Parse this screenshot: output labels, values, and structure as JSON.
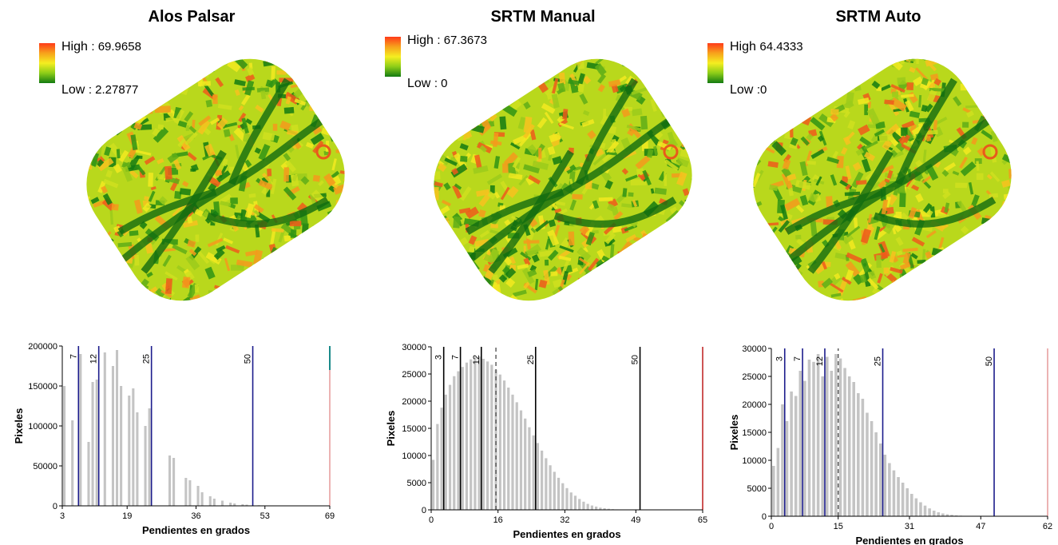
{
  "colors": {
    "high": "#ff3b1a",
    "mid": "#f5ee20",
    "low": "#137b12",
    "bar": "#c4c4c4"
  },
  "panels": [
    {
      "title": "Alos Palsar",
      "legend_high_label": "High",
      "legend_high_value": ": 69.9658",
      "legend_low_label": "Low",
      "legend_low_value": ": 2.27877"
    },
    {
      "title": "SRTM Manual",
      "legend_high_label": "High",
      "legend_high_value": ": 67.3673",
      "legend_low_label": "Low",
      "legend_low_value": ": 0"
    },
    {
      "title": "SRTM Auto",
      "legend_high_label": "High",
      "legend_high_value": "64.4333",
      "legend_low_label": "Low",
      "legend_low_value": ":0"
    }
  ],
  "chart_data": [
    {
      "type": "bar",
      "title": "",
      "xlabel": "Pendientes en grados",
      "ylabel": "Pixeles",
      "xlim": [
        3,
        69
      ],
      "ylim": [
        0,
        200000
      ],
      "xticks": [
        3,
        19,
        36,
        53,
        69
      ],
      "yticks": [
        0,
        50000,
        100000,
        150000,
        200000
      ],
      "x": [
        3,
        4,
        5,
        6,
        7,
        8,
        9,
        10,
        11,
        12,
        13,
        14,
        15,
        16,
        17,
        18,
        19,
        20,
        21,
        22,
        23,
        24,
        25,
        26,
        27,
        28,
        29,
        30,
        31,
        32,
        33,
        34,
        35,
        36,
        37,
        38,
        39,
        40,
        41,
        42,
        43,
        44,
        45,
        46,
        47,
        48,
        49,
        50,
        51,
        52,
        53,
        54,
        55,
        56,
        57,
        58,
        59,
        60,
        61,
        62,
        63,
        64,
        65,
        66,
        67,
        68
      ],
      "values": [
        150000,
        0,
        107000,
        0,
        190000,
        0,
        80000,
        155000,
        158000,
        0,
        192000,
        0,
        175000,
        195000,
        150000,
        0,
        138000,
        147000,
        117000,
        0,
        100000,
        122000,
        0,
        0,
        0,
        0,
        63000,
        60000,
        0,
        0,
        35000,
        32000,
        0,
        25000,
        17000,
        0,
        12000,
        9000,
        0,
        6500,
        0,
        4000,
        3000,
        0,
        2000,
        1500,
        0,
        0,
        800,
        500,
        0,
        300,
        0,
        0,
        0,
        0,
        0,
        0,
        0,
        0,
        0,
        0,
        0,
        0,
        0,
        0
      ],
      "reference_lines": [
        {
          "label": "7",
          "x": 7,
          "color": "#1c1c8c"
        },
        {
          "label": "12",
          "x": 12,
          "color": "#1c1c8c"
        },
        {
          "label": "25",
          "x": 25,
          "color": "#1c1c8c"
        },
        {
          "label": "50",
          "x": 50,
          "color": "#1c1c8c"
        }
      ],
      "end_line_color": "#e8a0a0",
      "end_top_color": "#1a8a8a"
    },
    {
      "type": "bar",
      "title": "",
      "xlabel": "Pendientes en grados",
      "ylabel": "Pixeles",
      "xlim": [
        0,
        65
      ],
      "ylim": [
        0,
        30000
      ],
      "xticks": [
        0,
        16,
        32,
        49,
        65
      ],
      "yticks": [
        0,
        5000,
        10000,
        15000,
        20000,
        25000,
        30000
      ],
      "x": [
        0,
        1,
        2,
        3,
        4,
        5,
        6,
        7,
        8,
        9,
        10,
        11,
        12,
        13,
        14,
        15,
        16,
        17,
        18,
        19,
        20,
        21,
        22,
        23,
        24,
        25,
        26,
        27,
        28,
        29,
        30,
        31,
        32,
        33,
        34,
        35,
        36,
        37,
        38,
        39,
        40,
        41,
        42,
        43,
        44,
        45,
        46,
        47,
        48,
        49
      ],
      "values": [
        9200,
        15800,
        18800,
        21200,
        23000,
        24600,
        25500,
        26300,
        27100,
        27700,
        28100,
        28200,
        27800,
        27300,
        26700,
        25800,
        24900,
        23800,
        22500,
        21200,
        19800,
        18300,
        16800,
        15200,
        13700,
        12300,
        10900,
        9500,
        8200,
        7000,
        5900,
        4900,
        4000,
        3200,
        2600,
        2000,
        1500,
        1100,
        800,
        600,
        400,
        300,
        200,
        120,
        80,
        50,
        30,
        20,
        10,
        5
      ],
      "reference_lines": [
        {
          "label": "3",
          "x": 3,
          "color": "#000000"
        },
        {
          "label": "7",
          "x": 7,
          "color": "#000000"
        },
        {
          "label": "12",
          "x": 12,
          "color": "#000000"
        },
        {
          "label": "25",
          "x": 25,
          "color": "#000000"
        },
        {
          "label": "50",
          "x": 50,
          "color": "#000000"
        }
      ],
      "mean_line_x": 15.5,
      "end_line_color": "#c22a2a"
    },
    {
      "type": "bar",
      "title": "",
      "xlabel": "Pendientes en grados",
      "ylabel": "Pixeles",
      "xlim": [
        0,
        62
      ],
      "ylim": [
        0,
        30000
      ],
      "xticks": [
        0,
        15,
        31,
        47,
        62
      ],
      "yticks": [
        0,
        5000,
        10000,
        15000,
        20000,
        25000,
        30000
      ],
      "x": [
        0,
        1,
        2,
        3,
        4,
        5,
        6,
        7,
        8,
        9,
        10,
        11,
        12,
        13,
        14,
        15,
        16,
        17,
        18,
        19,
        20,
        21,
        22,
        23,
        24,
        25,
        26,
        27,
        28,
        29,
        30,
        31,
        32,
        33,
        34,
        35,
        36,
        37,
        38,
        39,
        40,
        41,
        42,
        43,
        44,
        45,
        46,
        47
      ],
      "values": [
        9000,
        12200,
        20000,
        17000,
        22300,
        21500,
        26000,
        24200,
        28000,
        27600,
        29000,
        25000,
        28500,
        26000,
        29000,
        28200,
        26500,
        25000,
        24000,
        22000,
        21000,
        18500,
        17000,
        15000,
        13000,
        11000,
        9500,
        8200,
        7000,
        6000,
        5000,
        4000,
        3200,
        2500,
        1900,
        1400,
        1000,
        700,
        500,
        350,
        250,
        150,
        100,
        60,
        40,
        20,
        10,
        5
      ],
      "reference_lines": [
        {
          "label": "3",
          "x": 3,
          "color": "#1c1c8c"
        },
        {
          "label": "7",
          "x": 7,
          "color": "#1c1c8c"
        },
        {
          "label": "12",
          "x": 12,
          "color": "#1c1c8c"
        },
        {
          "label": "25",
          "x": 25,
          "color": "#1c1c8c"
        },
        {
          "label": "50",
          "x": 50,
          "color": "#1c1c8c"
        }
      ],
      "mean_line_x": 15,
      "end_line_color": "#e8a0a0"
    }
  ]
}
